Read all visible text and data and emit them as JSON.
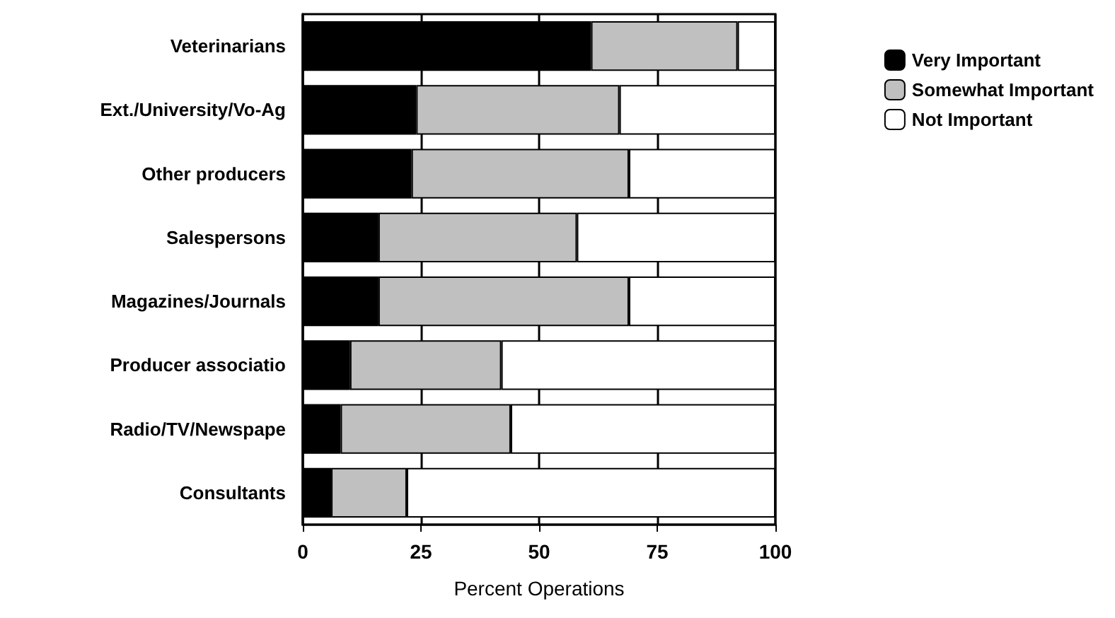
{
  "chart_data": {
    "type": "bar",
    "orientation": "horizontal",
    "stacked": true,
    "xlabel": "Percent Operations",
    "categories": [
      "Veterinarians",
      "Ext./University/Vo-Ag",
      "Other producers",
      "Salespersons",
      "Magazines/Journals",
      "Producer associatio",
      "Radio/TV/Newspape",
      "Consultants"
    ],
    "series": [
      {
        "name": "Very Important",
        "color": "#000000",
        "values": [
          61,
          24,
          23,
          16,
          16,
          10,
          8,
          6
        ]
      },
      {
        "name": "Somewhat Important",
        "color": "#c0c0c0",
        "values": [
          31,
          43,
          46,
          42,
          53,
          32,
          36,
          16
        ]
      },
      {
        "name": "Not Important",
        "color": "#ffffff",
        "values": [
          8,
          33,
          31,
          42,
          31,
          58,
          56,
          78
        ]
      }
    ],
    "xlim": [
      0,
      100
    ],
    "xticks": [
      0,
      25,
      50,
      75,
      100
    ],
    "grid": "x",
    "legend": "right"
  }
}
